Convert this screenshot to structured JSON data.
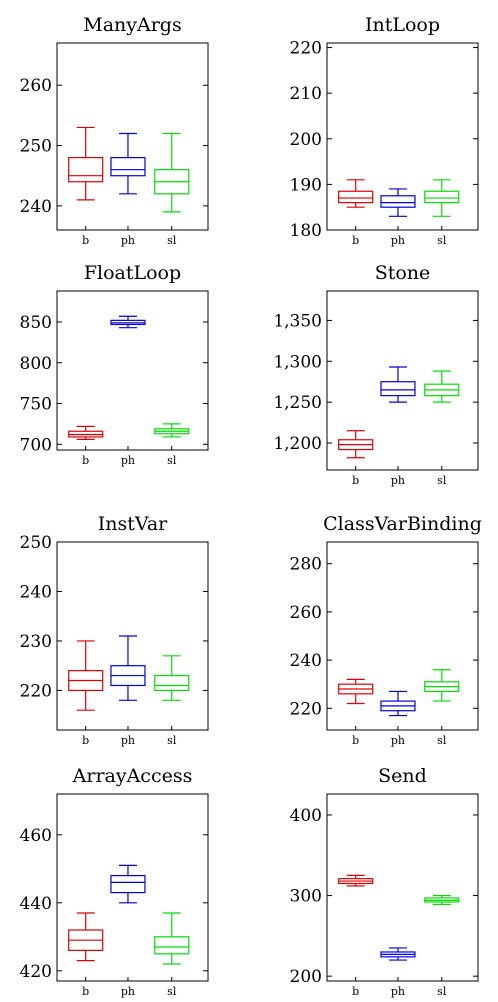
{
  "chart_data": [
    {
      "type": "box",
      "title": "ManyArgs",
      "categories": [
        "b",
        "ph",
        "sl"
      ],
      "colors": [
        "#e00000",
        "#0000e0",
        "#00e000"
      ],
      "ylim": [
        236,
        267
      ],
      "yticks": [
        {
          "v": 240,
          "label": "240"
        },
        {
          "v": 250,
          "label": "250"
        },
        {
          "v": 260,
          "label": "260"
        }
      ],
      "boxes": [
        {
          "min": 241,
          "q1": 244,
          "median": 245,
          "q3": 248,
          "max": 253
        },
        {
          "min": 242,
          "q1": 245,
          "median": 246,
          "q3": 248,
          "max": 252
        },
        {
          "min": 239,
          "q1": 242,
          "median": 244,
          "q3": 246,
          "max": 252
        }
      ]
    },
    {
      "type": "box",
      "title": "IntLoop",
      "categories": [
        "b",
        "ph",
        "sl"
      ],
      "colors": [
        "#e00000",
        "#0000e0",
        "#00e000"
      ],
      "ylim": [
        180,
        221
      ],
      "yticks": [
        {
          "v": 180,
          "label": "180"
        },
        {
          "v": 190,
          "label": "190"
        },
        {
          "v": 200,
          "label": "200"
        },
        {
          "v": 210,
          "label": "210"
        },
        {
          "v": 220,
          "label": "220"
        }
      ],
      "boxes": [
        {
          "min": 185,
          "q1": 186,
          "median": 187,
          "q3": 188.5,
          "max": 191
        },
        {
          "min": 183,
          "q1": 185,
          "median": 186,
          "q3": 187.5,
          "max": 189
        },
        {
          "min": 183,
          "q1": 186,
          "median": 187,
          "q3": 188.5,
          "max": 191
        }
      ]
    },
    {
      "type": "box",
      "title": "FloatLoop",
      "categories": [
        "b",
        "ph",
        "sl"
      ],
      "colors": [
        "#e00000",
        "#0000e0",
        "#00e000"
      ],
      "ylim": [
        693,
        888
      ],
      "yticks": [
        {
          "v": 700,
          "label": "700"
        },
        {
          "v": 750,
          "label": "750"
        },
        {
          "v": 800,
          "label": "800"
        },
        {
          "v": 850,
          "label": "850"
        }
      ],
      "boxes": [
        {
          "min": 706,
          "q1": 709,
          "median": 712,
          "q3": 716,
          "max": 722
        },
        {
          "min": 843,
          "q1": 847,
          "median": 849,
          "q3": 852,
          "max": 857
        },
        {
          "min": 709,
          "q1": 713,
          "median": 716,
          "q3": 719,
          "max": 725
        }
      ]
    },
    {
      "type": "box",
      "title": "Stone",
      "categories": [
        "b",
        "ph",
        "sl"
      ],
      "colors": [
        "#e00000",
        "#0000e0",
        "#00e000"
      ],
      "ylim": [
        1167,
        1386
      ],
      "yticks": [
        {
          "v": 1200,
          "label": "1,200"
        },
        {
          "v": 1250,
          "label": "1,250"
        },
        {
          "v": 1300,
          "label": "1,300"
        },
        {
          "v": 1350,
          "label": "1,350"
        }
      ],
      "boxes": [
        {
          "min": 1182,
          "q1": 1192,
          "median": 1198,
          "q3": 1204,
          "max": 1215
        },
        {
          "min": 1250,
          "q1": 1258,
          "median": 1265,
          "q3": 1275,
          "max": 1293
        },
        {
          "min": 1250,
          "q1": 1258,
          "median": 1265,
          "q3": 1272,
          "max": 1288
        }
      ]
    },
    {
      "type": "box",
      "title": "InstVar",
      "categories": [
        "b",
        "ph",
        "sl"
      ],
      "colors": [
        "#e00000",
        "#0000e0",
        "#00e000"
      ],
      "ylim": [
        212,
        250
      ],
      "yticks": [
        {
          "v": 220,
          "label": "220"
        },
        {
          "v": 230,
          "label": "230"
        },
        {
          "v": 240,
          "label": "240"
        },
        {
          "v": 250,
          "label": "250"
        }
      ],
      "boxes": [
        {
          "min": 216,
          "q1": 220,
          "median": 222,
          "q3": 224,
          "max": 230
        },
        {
          "min": 218,
          "q1": 221,
          "median": 223,
          "q3": 225,
          "max": 231
        },
        {
          "min": 218,
          "q1": 220,
          "median": 221,
          "q3": 223,
          "max": 227
        }
      ]
    },
    {
      "type": "box",
      "title": "ClassVarBinding",
      "categories": [
        "b",
        "ph",
        "sl"
      ],
      "colors": [
        "#e00000",
        "#0000e0",
        "#00e000"
      ],
      "ylim": [
        211,
        289
      ],
      "yticks": [
        {
          "v": 220,
          "label": "220"
        },
        {
          "v": 240,
          "label": "240"
        },
        {
          "v": 260,
          "label": "260"
        },
        {
          "v": 280,
          "label": "280"
        }
      ],
      "boxes": [
        {
          "min": 222,
          "q1": 226,
          "median": 228,
          "q3": 230,
          "max": 232
        },
        {
          "min": 217,
          "q1": 219,
          "median": 221,
          "q3": 223,
          "max": 227
        },
        {
          "min": 223,
          "q1": 227,
          "median": 229,
          "q3": 231,
          "max": 236
        }
      ]
    },
    {
      "type": "box",
      "title": "ArrayAccess",
      "categories": [
        "b",
        "ph",
        "sl"
      ],
      "colors": [
        "#e00000",
        "#0000e0",
        "#00e000"
      ],
      "ylim": [
        417,
        472
      ],
      "yticks": [
        {
          "v": 420,
          "label": "420"
        },
        {
          "v": 440,
          "label": "440"
        },
        {
          "v": 460,
          "label": "460"
        }
      ],
      "boxes": [
        {
          "min": 423,
          "q1": 426,
          "median": 429,
          "q3": 432,
          "max": 437
        },
        {
          "min": 440,
          "q1": 443,
          "median": 446,
          "q3": 448,
          "max": 451
        },
        {
          "min": 422,
          "q1": 425,
          "median": 427,
          "q3": 430,
          "max": 437
        }
      ]
    },
    {
      "type": "box",
      "title": "Send",
      "categories": [
        "b",
        "ph",
        "sl"
      ],
      "colors": [
        "#e00000",
        "#0000e0",
        "#00e000"
      ],
      "ylim": [
        194,
        426
      ],
      "yticks": [
        {
          "v": 200,
          "label": "200"
        },
        {
          "v": 300,
          "label": "300"
        },
        {
          "v": 400,
          "label": "400"
        }
      ],
      "boxes": [
        {
          "min": 312,
          "q1": 315,
          "median": 318,
          "q3": 321,
          "max": 325
        },
        {
          "min": 220,
          "q1": 224,
          "median": 227,
          "q3": 230,
          "max": 235
        },
        {
          "min": 289,
          "q1": 292,
          "median": 294,
          "q3": 297,
          "max": 300
        }
      ]
    }
  ]
}
